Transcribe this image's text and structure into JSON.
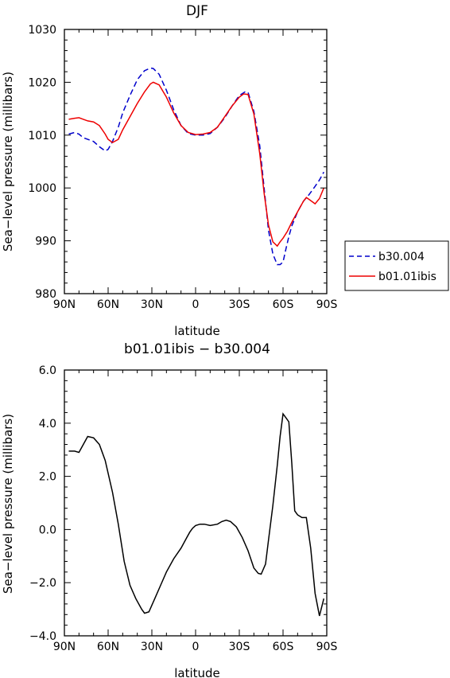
{
  "chart_data": [
    {
      "type": "line",
      "title": "DJF",
      "xlabel": "latitude",
      "ylabel": "Sea−level pressure (millibars)",
      "xlim": [
        90,
        -90
      ],
      "ylim": [
        980,
        1030
      ],
      "x_ticks": [
        {
          "value": 90,
          "label": "90N"
        },
        {
          "value": 60,
          "label": "60N"
        },
        {
          "value": 30,
          "label": "30N"
        },
        {
          "value": 0,
          "label": "0"
        },
        {
          "value": -30,
          "label": "30S"
        },
        {
          "value": -60,
          "label": "60S"
        },
        {
          "value": -90,
          "label": "90S"
        }
      ],
      "y_ticks": [
        {
          "value": 980,
          "label": "980"
        },
        {
          "value": 990,
          "label": "990"
        },
        {
          "value": 1000,
          "label": "1000"
        },
        {
          "value": 1010,
          "label": "1010"
        },
        {
          "value": 1020,
          "label": "1020"
        },
        {
          "value": 1030,
          "label": "1030"
        }
      ],
      "legend_position": "right",
      "series": [
        {
          "name": "b30.004",
          "color": "#0000cc",
          "dash": "dashed",
          "x": [
            87,
            83,
            80,
            77,
            74,
            70,
            66,
            62,
            60,
            57,
            53,
            50,
            45,
            40,
            35,
            31,
            29,
            25,
            20,
            15,
            10,
            5,
            0,
            -5,
            -10,
            -15,
            -20,
            -25,
            -30,
            -34,
            -36,
            -40,
            -44,
            -47,
            -50,
            -53,
            -56,
            -58,
            -60,
            -62,
            -64,
            -66,
            -70,
            -74,
            -78,
            -82,
            -85,
            -88
          ],
          "y": [
            1010.2,
            1010.5,
            1010.2,
            1009.5,
            1009.2,
            1008.8,
            1007.8,
            1007.0,
            1007.3,
            1008.8,
            1011.5,
            1014.2,
            1017.5,
            1020.5,
            1022.2,
            1022.7,
            1022.6,
            1021.5,
            1018.5,
            1014.8,
            1011.8,
            1010.3,
            1010.0,
            1010.0,
            1010.3,
            1011.5,
            1013.3,
            1015.5,
            1017.5,
            1018.2,
            1018.1,
            1014.5,
            1008.0,
            1000.0,
            992.0,
            987.5,
            985.5,
            985.5,
            986.0,
            988.5,
            990.8,
            992.8,
            995.5,
            997.5,
            998.8,
            1000.3,
            1001.5,
            1003.0
          ]
        },
        {
          "name": "b01.01ibis",
          "color": "#ee0000",
          "dash": "solid",
          "x": [
            87,
            83,
            80,
            77,
            74,
            70,
            66,
            62,
            60,
            57,
            53,
            50,
            45,
            40,
            35,
            31,
            29,
            25,
            20,
            15,
            10,
            5,
            0,
            -5,
            -10,
            -15,
            -20,
            -25,
            -30,
            -33,
            -36,
            -40,
            -44,
            -47,
            -50,
            -53,
            -56,
            -58,
            -60,
            -63,
            -66,
            -70,
            -74,
            -76,
            -78,
            -82,
            -85,
            -88
          ],
          "y": [
            1013.0,
            1013.2,
            1013.3,
            1013.0,
            1012.7,
            1012.5,
            1011.8,
            1010.2,
            1009.2,
            1008.6,
            1009.2,
            1011.0,
            1013.5,
            1016.0,
            1018.2,
            1019.7,
            1020.0,
            1019.5,
            1017.2,
            1014.2,
            1011.8,
            1010.5,
            1010.1,
            1010.2,
            1010.5,
            1011.5,
            1013.5,
            1015.5,
            1017.2,
            1017.8,
            1017.7,
            1014.0,
            1006.5,
            999.0,
            993.0,
            989.8,
            989.0,
            989.8,
            990.5,
            991.8,
            993.5,
            995.5,
            997.5,
            998.2,
            997.8,
            997.0,
            998.0,
            1000.0
          ]
        }
      ]
    },
    {
      "type": "line",
      "title": "b01.01ibis − b30.004",
      "xlabel": "latitude",
      "ylabel": "Sea−level pressure (millibars)",
      "xlim": [
        90,
        -90
      ],
      "ylim": [
        -4,
        6
      ],
      "x_ticks": [
        {
          "value": 90,
          "label": "90N"
        },
        {
          "value": 60,
          "label": "60N"
        },
        {
          "value": 30,
          "label": "30N"
        },
        {
          "value": 0,
          "label": "0"
        },
        {
          "value": -30,
          "label": "30S"
        },
        {
          "value": -60,
          "label": "60S"
        },
        {
          "value": -90,
          "label": "90S"
        }
      ],
      "y_ticks": [
        {
          "value": -4,
          "label": "−4.0"
        },
        {
          "value": -2,
          "label": "−2.0"
        },
        {
          "value": 0,
          "label": "0.0"
        },
        {
          "value": 2,
          "label": "2.0"
        },
        {
          "value": 4,
          "label": "4.0"
        },
        {
          "value": 6,
          "label": "6.0"
        }
      ],
      "series": [
        {
          "name": "",
          "color": "#000000",
          "dash": "solid",
          "x": [
            87,
            83,
            80,
            77,
            74,
            70,
            66,
            62,
            57,
            53,
            49,
            45,
            41,
            37,
            35,
            32,
            28,
            24,
            20,
            15,
            10,
            6,
            4,
            2,
            0,
            -3,
            -6,
            -10,
            -15,
            -18,
            -21,
            -24,
            -28,
            -32,
            -36,
            -40,
            -43,
            -45,
            -48,
            -50,
            -53,
            -56,
            -58,
            -60,
            -62,
            -64,
            -66,
            -68,
            -70,
            -73,
            -76,
            -79,
            -82,
            -85,
            -88
          ],
          "y": [
            2.95,
            2.95,
            2.9,
            3.2,
            3.5,
            3.45,
            3.2,
            2.6,
            1.4,
            0.2,
            -1.2,
            -2.1,
            -2.6,
            -3.0,
            -3.15,
            -3.1,
            -2.6,
            -2.1,
            -1.6,
            -1.1,
            -0.7,
            -0.3,
            -0.1,
            0.05,
            0.15,
            0.2,
            0.2,
            0.15,
            0.2,
            0.3,
            0.35,
            0.3,
            0.1,
            -0.3,
            -0.8,
            -1.45,
            -1.65,
            -1.68,
            -1.3,
            -0.4,
            0.9,
            2.4,
            3.5,
            4.35,
            4.2,
            4.05,
            2.5,
            0.7,
            0.55,
            0.45,
            0.45,
            -0.7,
            -2.4,
            -3.25,
            -2.6
          ]
        }
      ]
    }
  ]
}
